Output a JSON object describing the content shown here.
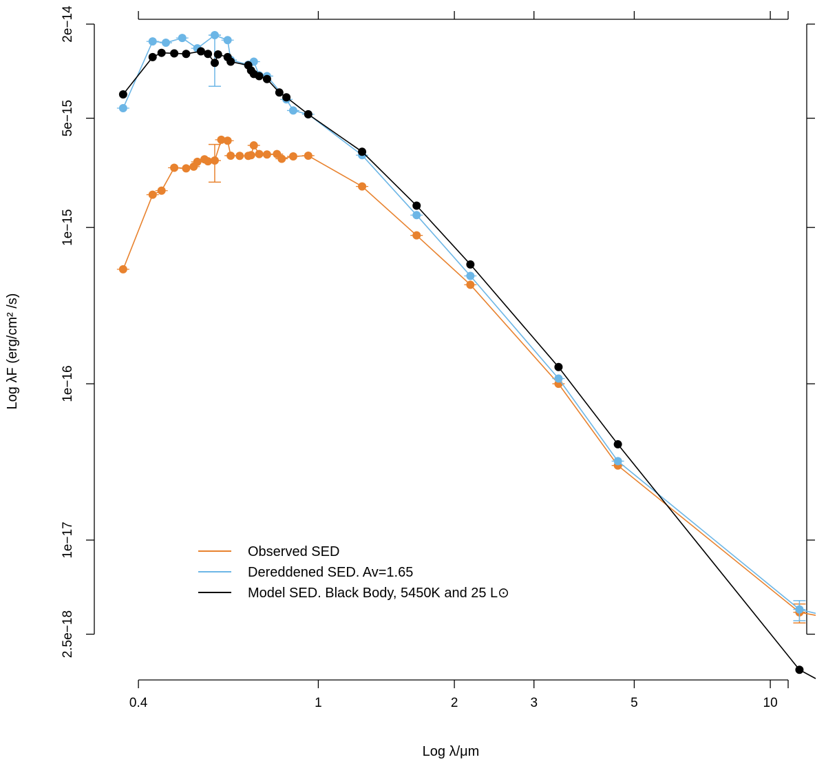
{
  "chart_data": {
    "type": "line",
    "xlabel": "Log λ/μm",
    "ylabel": "Log λF (erg/cm² /s)",
    "x_scale": "log",
    "y_scale": "log",
    "xlim": [
      0.365,
      12.6
    ],
    "ylim": [
      1.3e-18,
      2e-14
    ],
    "x_ticks": [
      0.4,
      1,
      2,
      3,
      5,
      10
    ],
    "x_tick_labels": [
      "0.4",
      "1",
      "2",
      "3",
      "5",
      "10"
    ],
    "y_ticks": [
      2e-14,
      5e-15,
      1e-15,
      1e-16,
      1e-17,
      2.5e-18
    ],
    "y_tick_labels": [
      "2e−14",
      "5e−15",
      "1e−15",
      "1e−16",
      "1e−17",
      "2.5e−18"
    ],
    "grid": false,
    "legend_position": "bottom-left",
    "series": [
      {
        "name": "Observed SED",
        "color": "#e8822e",
        "x": [
          0.37,
          0.43,
          0.45,
          0.48,
          0.51,
          0.53,
          0.54,
          0.56,
          0.57,
          0.59,
          0.61,
          0.63,
          0.64,
          0.67,
          0.7,
          0.71,
          0.72,
          0.74,
          0.77,
          0.81,
          0.83,
          0.88,
          0.95,
          1.25,
          1.65,
          2.17,
          3.4,
          4.6,
          11.6,
          12.6
        ],
        "y": [
          5.4e-16,
          1.62e-15,
          1.72e-15,
          2.41e-15,
          2.39e-15,
          2.45e-15,
          2.63e-15,
          2.73e-15,
          2.65e-15,
          2.68e-15,
          3.64e-15,
          3.59e-15,
          2.88e-15,
          2.87e-15,
          2.87e-15,
          2.9e-15,
          3.35e-15,
          2.95e-15,
          2.93e-15,
          2.95e-15,
          2.75e-15,
          2.85e-15,
          2.88e-15,
          1.83e-15,
          8.9e-16,
          4.3e-16,
          1e-16,
          3e-17,
          3.45e-18,
          3.3e-18
        ],
        "error_bars": [
          {
            "x": 0.59,
            "y": 2.7e-15,
            "low": 1.95e-15,
            "high": 3.4e-15
          },
          {
            "x": 11.6,
            "y": 3.45e-18,
            "low": 2.95e-18,
            "high": 3.9e-18
          }
        ]
      },
      {
        "name": "Dereddened SED. Av=1.65",
        "color": "#6cb6e6",
        "x": [
          0.37,
          0.43,
          0.46,
          0.5,
          0.54,
          0.59,
          0.63,
          0.64,
          0.7,
          0.72,
          0.74,
          0.77,
          0.85,
          0.88,
          0.95,
          1.25,
          1.65,
          2.17,
          3.4,
          4.6,
          11.6,
          12.6
        ],
        "y": [
          5.8e-15,
          1.55e-14,
          1.52e-14,
          1.63e-14,
          1.4e-14,
          1.7e-14,
          1.58e-14,
          1.18e-14,
          1.1e-14,
          1.15e-14,
          9.4e-15,
          9.3e-15,
          6.6e-15,
          5.6e-15,
          5.3e-15,
          2.9e-15,
          1.2e-15,
          4.9e-16,
          1.08e-16,
          3.2e-17,
          3.6e-18,
          3.4e-18
        ],
        "error_bars": [
          {
            "x": 0.59,
            "y": 1.2e-14,
            "low": 8e-15,
            "high": 1.7e-14
          },
          {
            "x": 11.6,
            "y": 3.6e-18,
            "low": 3.05e-18,
            "high": 4.1e-18
          }
        ]
      },
      {
        "name": "Model SED. Black Body, 5450K and 25 L⊙",
        "color": "#000000",
        "x": [
          0.37,
          0.43,
          0.45,
          0.48,
          0.51,
          0.55,
          0.57,
          0.59,
          0.6,
          0.63,
          0.64,
          0.7,
          0.71,
          0.72,
          0.74,
          0.77,
          0.82,
          0.85,
          0.95,
          1.25,
          1.65,
          2.17,
          3.4,
          4.6,
          11.6,
          12.6
        ],
        "y": [
          7.1e-15,
          1.23e-14,
          1.31e-14,
          1.3e-14,
          1.29e-14,
          1.34e-14,
          1.29e-14,
          1.13e-14,
          1.28e-14,
          1.23e-14,
          1.15e-14,
          1.09e-14,
          1.01e-14,
          9.6e-15,
          9.3e-15,
          8.9e-15,
          7.3e-15,
          6.8e-15,
          5.3e-15,
          3.05e-15,
          1.38e-15,
          5.8e-16,
          1.28e-16,
          4.1e-17,
          1.48e-18,
          1.3e-18
        ],
        "error_bars": []
      }
    ]
  }
}
